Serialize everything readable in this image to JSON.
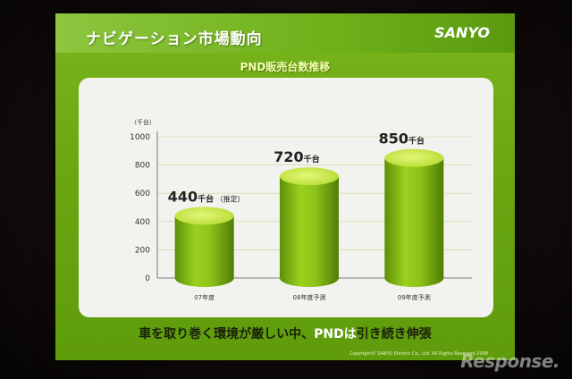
{
  "slide": {
    "title": "ナビゲーション市場動向",
    "logo": "SANYO",
    "subtitle": "PND販売台数推移",
    "caption_prefix": "車を取り巻く環境が厳しい中、",
    "caption_pnd": "PNDは",
    "caption_suffix": "引き続き伸張",
    "copyright": "Copyright© SANYO Electric Co., Ltd. All Rights Reserved 2008"
  },
  "watermark": "Response.",
  "colors": {
    "slide_green": "#6aa712",
    "bar_body": "#8ec21a",
    "bar_top": "#c6e84a",
    "panel": "#f2f2ee",
    "caption_text": "#1a1f0a"
  },
  "chart_data": {
    "type": "bar",
    "title": "PND販売台数推移",
    "y_unit_label": "（千台）",
    "ylim": [
      0,
      1000
    ],
    "yticks": [
      0,
      200,
      400,
      600,
      800,
      1000
    ],
    "grid": true,
    "categories": [
      "07年度",
      "08年度予測",
      "09年度予測"
    ],
    "values": [
      440,
      720,
      850
    ],
    "data_labels": [
      {
        "value": "440",
        "unit": "千台",
        "note": "（推定）"
      },
      {
        "value": "720",
        "unit": "千台",
        "note": ""
      },
      {
        "value": "850",
        "unit": "千台",
        "note": ""
      }
    ]
  }
}
